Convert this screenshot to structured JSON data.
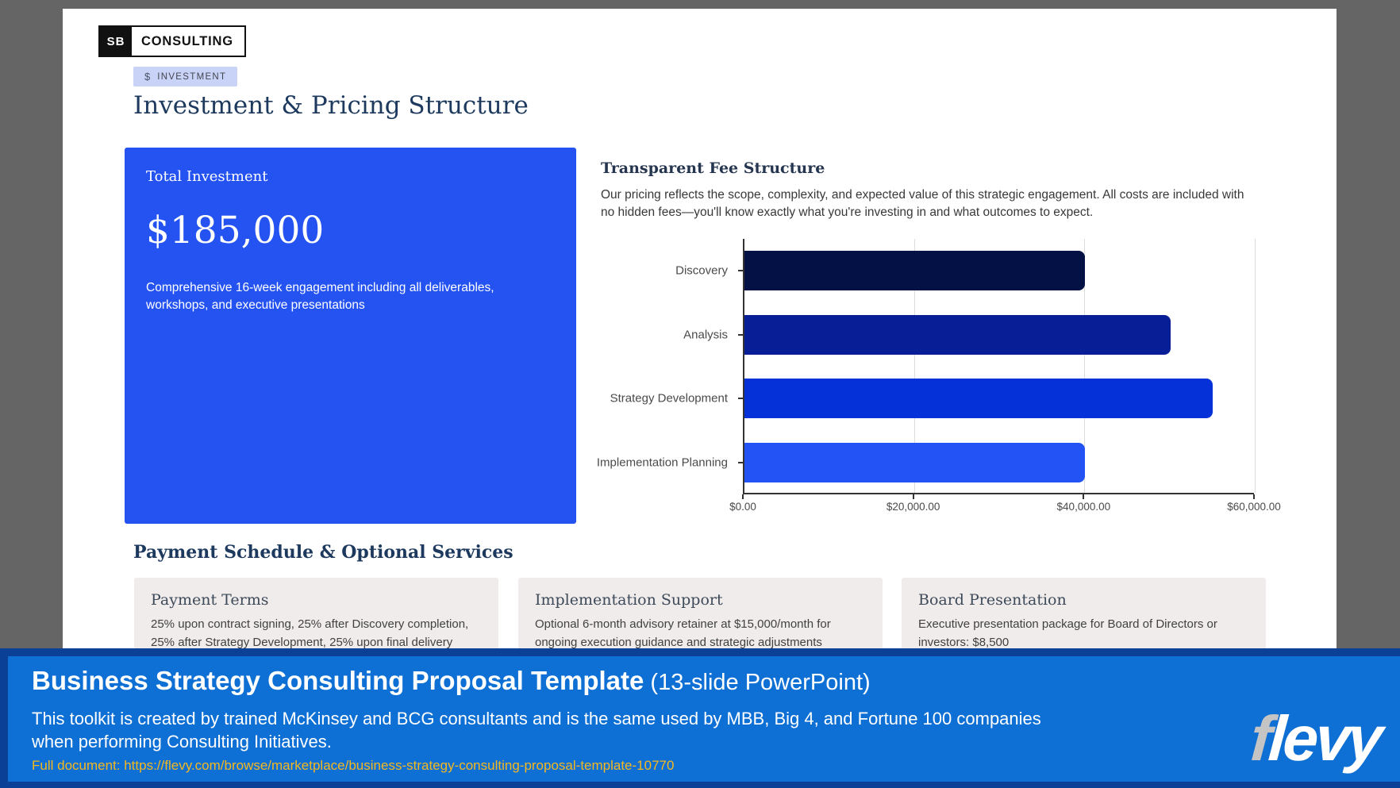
{
  "slide": {
    "logo": {
      "initials": "SB",
      "name": "CONSULTING"
    },
    "badge": {
      "icon": "$",
      "label": "INVESTMENT"
    },
    "title": "Investment & Pricing Structure",
    "investment_card": {
      "label": "Total Investment",
      "amount": "$185,000",
      "description": "Comprehensive 16-week engagement including all deliverables, workshops, and executive presentations",
      "background": "#2553f1"
    },
    "fee_section": {
      "heading": "Transparent Fee Structure",
      "body": "Our pricing reflects the scope, complexity, and expected value of this strategic engagement. All costs are included with no hidden fees—you'll know exactly what you're investing in and what outcomes to expect."
    },
    "payment_section": {
      "heading": "Payment Schedule & Optional Services",
      "cards": [
        {
          "title": "Payment Terms",
          "body": "25% upon contract signing, 25% after Discovery completion, 25% after Strategy Development, 25% upon final delivery"
        },
        {
          "title": "Implementation Support",
          "body": "Optional 6-month advisory retainer at $15,000/month for ongoing execution guidance and strategic adjustments"
        },
        {
          "title": "Board Presentation",
          "body": "Executive presentation package for Board of Directors or investors: $8,500"
        }
      ]
    }
  },
  "chart_data": {
    "type": "bar",
    "orientation": "horizontal",
    "categories": [
      "Discovery",
      "Analysis",
      "Strategy Development",
      "Implementation Planning"
    ],
    "values": [
      40000,
      50000,
      55000,
      40000
    ],
    "bar_colors": [
      "#041144",
      "#071e96",
      "#0531d8",
      "#2453f5"
    ],
    "xlim": [
      0,
      60000
    ],
    "ticks": [
      {
        "label": "$0.00",
        "value": 0
      },
      {
        "label": "$20,000.00",
        "value": 20000
      },
      {
        "label": "$40,000.00",
        "value": 40000
      },
      {
        "label": "$60,000.00",
        "value": 60000
      }
    ],
    "grid": true,
    "legend": "none",
    "title": ""
  },
  "banner": {
    "title": "Business Strategy Consulting Proposal Template",
    "title_suffix": " (13-slide PowerPoint)",
    "description": "This toolkit is created by trained McKinsey and BCG consultants and is the same used by MBB, Big 4, and Fortune 100 companies when performing Consulting Initiatives.",
    "link": "Full document: https://flevy.com/browse/marketplace/business-strategy-consulting-proposal-template-10770",
    "logo": {
      "first_letter": "f",
      "rest": "levy"
    },
    "colors": {
      "background": "#0e6fd4",
      "border": "#0a4196",
      "link": "#f5b81f"
    }
  }
}
